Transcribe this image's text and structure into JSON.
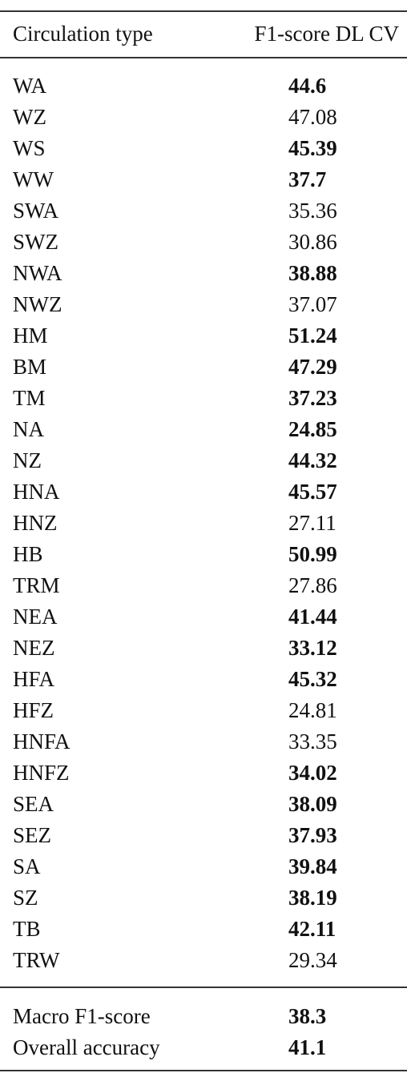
{
  "header": {
    "col_type": "Circulation type",
    "col_score": "F1-score DL CV"
  },
  "rows": [
    {
      "label": "WA",
      "value": "44.6",
      "bold": true
    },
    {
      "label": "WZ",
      "value": "47.08",
      "bold": false
    },
    {
      "label": "WS",
      "value": "45.39",
      "bold": true
    },
    {
      "label": "WW",
      "value": "37.7",
      "bold": true
    },
    {
      "label": "SWA",
      "value": "35.36",
      "bold": false
    },
    {
      "label": "SWZ",
      "value": "30.86",
      "bold": false
    },
    {
      "label": "NWA",
      "value": "38.88",
      "bold": true
    },
    {
      "label": "NWZ",
      "value": "37.07",
      "bold": false
    },
    {
      "label": "HM",
      "value": "51.24",
      "bold": true
    },
    {
      "label": "BM",
      "value": "47.29",
      "bold": true
    },
    {
      "label": "TM",
      "value": "37.23",
      "bold": true
    },
    {
      "label": "NA",
      "value": "24.85",
      "bold": true
    },
    {
      "label": "NZ",
      "value": "44.32",
      "bold": true
    },
    {
      "label": "HNA",
      "value": "45.57",
      "bold": true
    },
    {
      "label": "HNZ",
      "value": "27.11",
      "bold": false
    },
    {
      "label": "HB",
      "value": "50.99",
      "bold": true
    },
    {
      "label": "TRM",
      "value": "27.86",
      "bold": false
    },
    {
      "label": "NEA",
      "value": "41.44",
      "bold": true
    },
    {
      "label": "NEZ",
      "value": "33.12",
      "bold": true
    },
    {
      "label": "HFA",
      "value": "45.32",
      "bold": true
    },
    {
      "label": "HFZ",
      "value": "24.81",
      "bold": false
    },
    {
      "label": "HNFA",
      "value": "33.35",
      "bold": false
    },
    {
      "label": "HNFZ",
      "value": "34.02",
      "bold": true
    },
    {
      "label": "SEA",
      "value": "38.09",
      "bold": true
    },
    {
      "label": "SEZ",
      "value": "37.93",
      "bold": true
    },
    {
      "label": "SA",
      "value": "39.84",
      "bold": true
    },
    {
      "label": "SZ",
      "value": "38.19",
      "bold": true
    },
    {
      "label": "TB",
      "value": "42.11",
      "bold": true
    },
    {
      "label": "TRW",
      "value": "29.34",
      "bold": false
    }
  ],
  "summary": [
    {
      "label": "Macro F1-score",
      "value": "38.3",
      "bold": true
    },
    {
      "label": "Overall accuracy",
      "value": "41.1",
      "bold": true
    }
  ]
}
